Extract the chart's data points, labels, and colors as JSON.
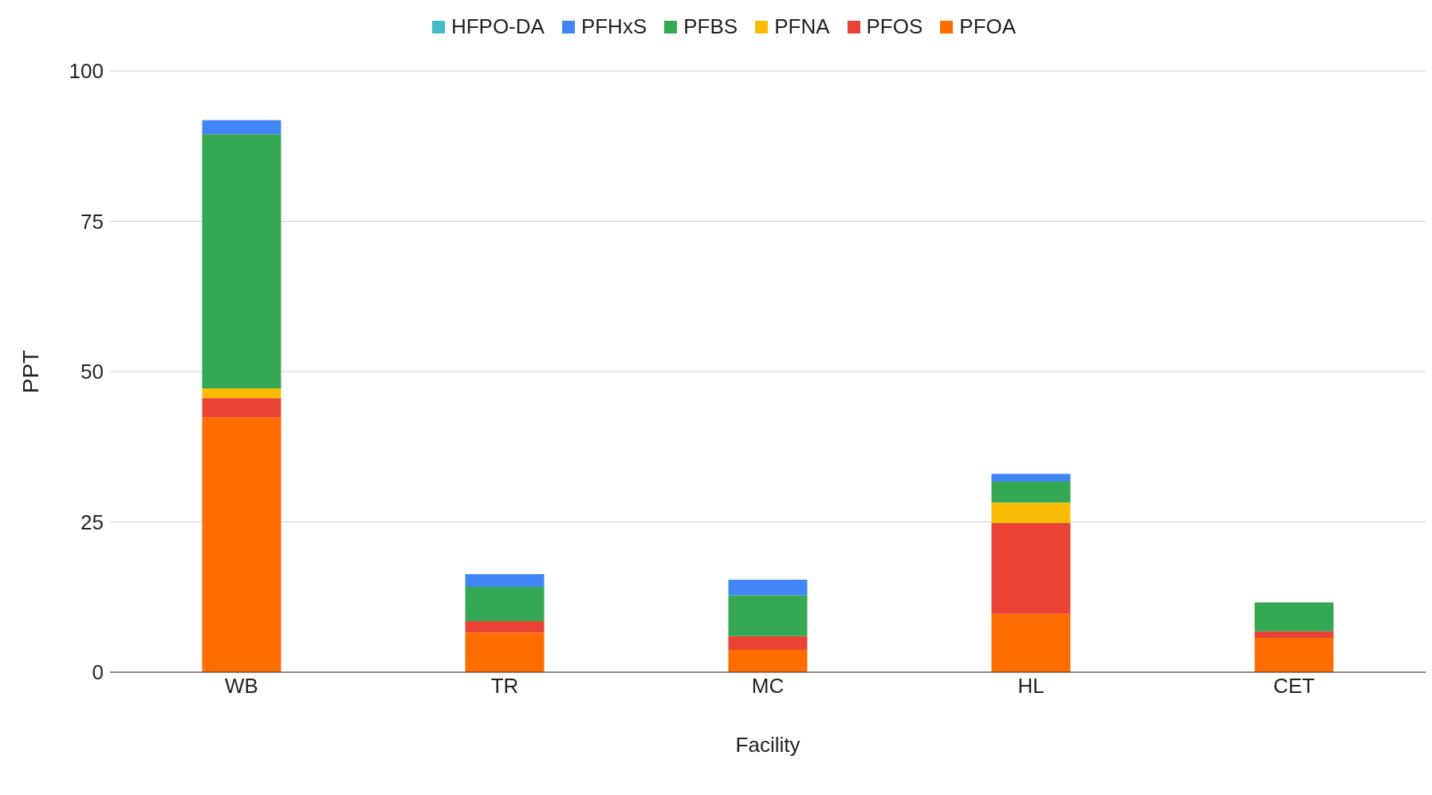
{
  "chart_data": {
    "type": "bar",
    "stacked": true,
    "xlabel": "Facility",
    "ylabel": "PPT",
    "categories": [
      "WB",
      "TR",
      "MC",
      "HL",
      "CET"
    ],
    "series": [
      {
        "name": "PFOA",
        "color": "#ff6d01",
        "values": [
          42.4,
          6.6,
          3.7,
          9.7,
          5.7
        ]
      },
      {
        "name": "PFOS",
        "color": "#ea4335",
        "values": [
          3.2,
          1.9,
          2.3,
          15.1,
          1.1
        ]
      },
      {
        "name": "PFNA",
        "color": "#fbbc04",
        "values": [
          1.6,
          0,
          0,
          3.4,
          0
        ]
      },
      {
        "name": "PFBS",
        "color": "#34a853",
        "values": [
          42.3,
          5.7,
          6.8,
          3.5,
          4.8
        ]
      },
      {
        "name": "PFHxS",
        "color": "#4285f4",
        "values": [
          2.3,
          2.1,
          2.6,
          1.3,
          0
        ]
      },
      {
        "name": "HFPO-DA",
        "color": "#46bdc6",
        "values": [
          0,
          0,
          0,
          0,
          0
        ]
      }
    ],
    "ylim": [
      0,
      100
    ],
    "yticks": [
      0,
      25,
      50,
      75,
      100
    ],
    "grid": "y",
    "legend": "top"
  }
}
